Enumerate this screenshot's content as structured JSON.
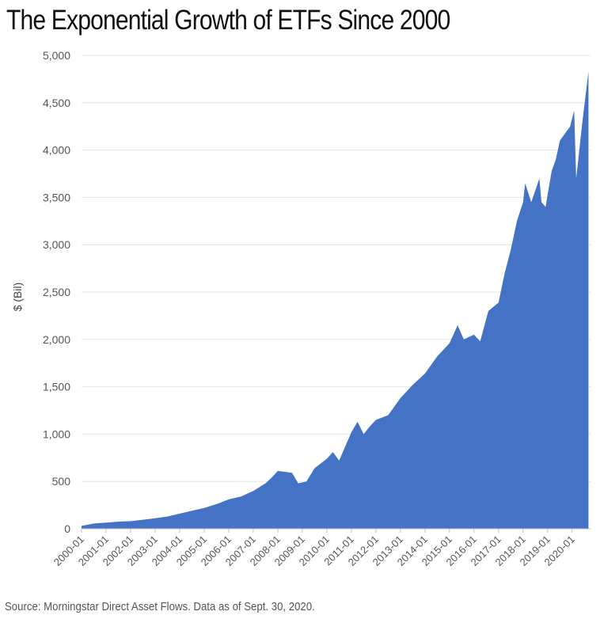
{
  "header": {
    "title": "The Exponential Growth of ETFs Since 2000"
  },
  "footer": {
    "source": "Source: Morningstar Direct Asset Flows. Data as of Sept. 30, 2020."
  },
  "colors": {
    "area": "#4472C4",
    "grid": "#e4e4e4",
    "axis": "#bfbfbf"
  },
  "chart_data": {
    "type": "area",
    "title": "The Exponential Growth of ETFs Since 2000",
    "xlabel": "",
    "ylabel": "$ (Bil)",
    "ylim": [
      0,
      5000
    ],
    "yticks": [
      0,
      500,
      1000,
      1500,
      2000,
      2500,
      3000,
      3500,
      4000,
      4500,
      5000
    ],
    "ytick_labels": [
      "0",
      "500",
      "1,000",
      "1,500",
      "2,000",
      "2,500",
      "3,000",
      "3,500",
      "4,000",
      "4,500",
      "5,000"
    ],
    "xticks": [
      "2000-01",
      "2001-01",
      "2002-01",
      "2003-01",
      "2004-01",
      "2005-01",
      "2006-01",
      "2007-01",
      "2008-01",
      "2009-01",
      "2010-01",
      "2011-01",
      "2012-01",
      "2013-01",
      "2014-01",
      "2015-01",
      "2016-01",
      "2017-01",
      "2018-01",
      "2019-01",
      "2020-01"
    ],
    "x": [
      "2000-01",
      "2000-07",
      "2001-01",
      "2001-07",
      "2002-01",
      "2002-07",
      "2003-01",
      "2003-07",
      "2004-01",
      "2004-07",
      "2005-01",
      "2005-07",
      "2006-01",
      "2006-07",
      "2007-01",
      "2007-07",
      "2007-10",
      "2008-01",
      "2008-05",
      "2008-08",
      "2008-11",
      "2009-03",
      "2009-07",
      "2010-01",
      "2010-04",
      "2010-07",
      "2011-01",
      "2011-04",
      "2011-07",
      "2011-10",
      "2012-01",
      "2012-07",
      "2013-01",
      "2013-07",
      "2014-01",
      "2014-07",
      "2015-01",
      "2015-05",
      "2015-08",
      "2016-01",
      "2016-04",
      "2016-08",
      "2017-01",
      "2017-04",
      "2017-07",
      "2017-10",
      "2018-01",
      "2018-02",
      "2018-05",
      "2018-09",
      "2018-10",
      "2018-12",
      "2019-03",
      "2019-05",
      "2019-07",
      "2019-12",
      "2020-02",
      "2020-03",
      "2020-06",
      "2020-09"
    ],
    "values": [
      30,
      55,
      65,
      75,
      80,
      95,
      110,
      130,
      160,
      190,
      220,
      260,
      310,
      340,
      400,
      480,
      540,
      610,
      600,
      590,
      480,
      500,
      640,
      740,
      810,
      720,
      1020,
      1130,
      1000,
      1080,
      1150,
      1200,
      1380,
      1520,
      1640,
      1820,
      1960,
      2150,
      2000,
      2050,
      1980,
      2300,
      2390,
      2700,
      2950,
      3250,
      3450,
      3650,
      3450,
      3700,
      3450,
      3400,
      3780,
      3900,
      4100,
      4250,
      4420,
      3700,
      4300,
      4830
    ]
  }
}
